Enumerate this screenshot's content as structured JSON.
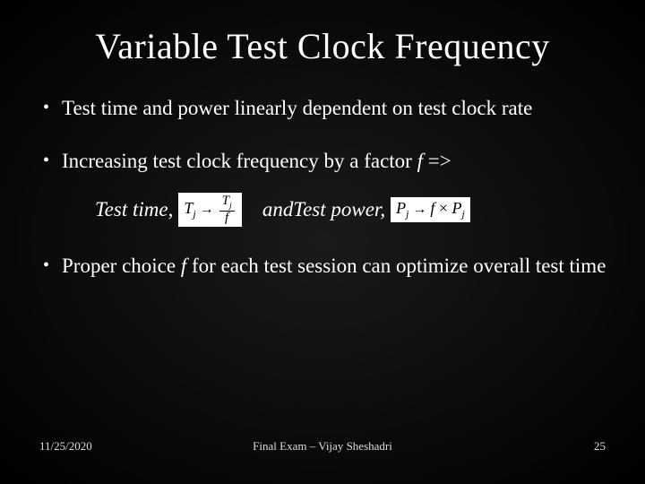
{
  "slide": {
    "title": "Variable Test Clock Frequency",
    "bullets": [
      {
        "text": "Test time and power linearly dependent on test clock rate"
      },
      {
        "text_prefix": "Increasing test clock frequency by a factor ",
        "factor": "f",
        "text_suffix": " =>"
      },
      {
        "text_prefix": "Proper choice ",
        "factor": "f",
        "text_suffix": " for each test session can optimize overall test time"
      }
    ],
    "formula": {
      "label1": "Test time,",
      "eq1": {
        "lhs_var": "T",
        "lhs_sub": "j",
        "rhs_num_var": "T",
        "rhs_num_sub": "j",
        "rhs_den": "f"
      },
      "mid": "  and ",
      "label2": "Test power,",
      "eq2": {
        "lhs_var": "P",
        "lhs_sub": "j",
        "rhs_factor": "f",
        "rhs_times": "×",
        "rhs_var": "P",
        "rhs_sub": "j"
      }
    },
    "footer": {
      "date": "11/25/2020",
      "center": "Final Exam – Vijay Sheshadri",
      "page": "25"
    },
    "colors": {
      "text": "#ffffff",
      "formula_bg": "#ffffff",
      "formula_text": "#000000",
      "footer_text": "#dddddd"
    },
    "fonts": {
      "title_size_pt": 40,
      "body_size_pt": 23,
      "footer_size_pt": 13
    }
  }
}
